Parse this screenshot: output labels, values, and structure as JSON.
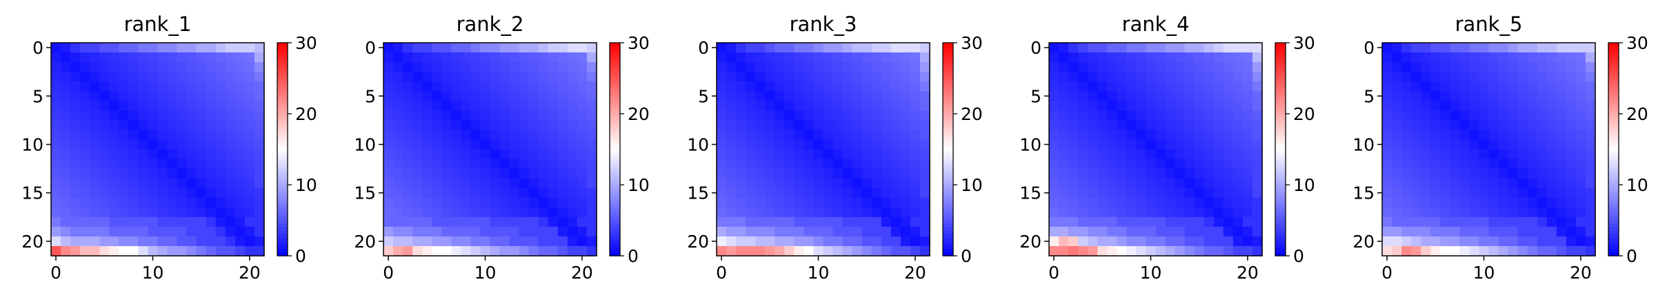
{
  "chart_data": [
    {
      "type": "heatmap",
      "title": "rank_1",
      "n": 22,
      "xticks": [
        0,
        10,
        20
      ],
      "yticks": [
        0,
        5,
        10,
        15,
        20
      ],
      "colorbar": {
        "min": 0,
        "max": 30,
        "ticks": [
          0,
          10,
          20,
          30
        ],
        "colors": [
          "#0000ff",
          "#ffffff",
          "#ff0000"
        ]
      },
      "diagonal_value": 1,
      "distance_slope": 0.3,
      "near_band_value": 1.5,
      "last_row": [
        25,
        22,
        21,
        19,
        19,
        17,
        16,
        15,
        15,
        13,
        11,
        10,
        9,
        9,
        8,
        7,
        6,
        5,
        5,
        4,
        3,
        3
      ],
      "row_20": [
        13,
        11,
        10,
        10,
        10,
        9,
        9,
        8,
        8,
        7,
        7,
        6,
        6,
        5,
        5,
        4,
        4,
        4,
        3,
        3,
        3,
        3
      ],
      "row_19": [
        9,
        8,
        7,
        7,
        7,
        7,
        6,
        6,
        6,
        6,
        5,
        5,
        5,
        5,
        4,
        4,
        4,
        3,
        3,
        3,
        3,
        3
      ],
      "row_18": [
        7,
        6,
        6,
        6,
        6,
        6,
        5,
        5,
        5,
        5,
        5,
        4,
        4,
        4,
        4,
        4,
        3,
        3,
        3,
        3,
        3,
        3
      ],
      "top_row": [
        3,
        3,
        3,
        4,
        4,
        5,
        5,
        6,
        6,
        7,
        7,
        8,
        8,
        9,
        9,
        10,
        10,
        11,
        12,
        12,
        12,
        11
      ],
      "last_col_top": [
        11,
        10,
        8,
        7,
        6,
        6,
        5,
        5,
        5,
        4,
        4,
        4,
        4,
        4,
        4,
        3,
        3,
        3,
        3,
        3,
        3,
        3
      ]
    },
    {
      "type": "heatmap",
      "title": "rank_2",
      "n": 22,
      "xticks": [
        0,
        10,
        20
      ],
      "yticks": [
        0,
        5,
        10,
        15,
        20
      ],
      "colorbar": {
        "min": 0,
        "max": 30,
        "ticks": [
          0,
          10,
          20,
          30
        ],
        "colors": [
          "#0000ff",
          "#ffffff",
          "#ff0000"
        ]
      },
      "diagonal_value": 1,
      "distance_slope": 0.3,
      "near_band_value": 1.5,
      "last_row": [
        18,
        20,
        21,
        17,
        16,
        15,
        15,
        14,
        13,
        12,
        11,
        10,
        9,
        9,
        8,
        7,
        6,
        6,
        5,
        4,
        4,
        3
      ],
      "row_20": [
        12,
        11,
        11,
        10,
        10,
        9,
        9,
        8,
        8,
        7,
        7,
        6,
        6,
        5,
        5,
        5,
        4,
        4,
        4,
        3,
        3,
        3
      ],
      "row_19": [
        9,
        8,
        8,
        7,
        7,
        7,
        6,
        6,
        6,
        6,
        5,
        5,
        5,
        5,
        4,
        4,
        4,
        4,
        3,
        3,
        3,
        3
      ],
      "row_18": [
        6,
        6,
        6,
        6,
        6,
        5,
        5,
        5,
        5,
        5,
        5,
        4,
        4,
        4,
        4,
        4,
        3,
        3,
        3,
        3,
        3,
        3
      ],
      "top_row": [
        3,
        3,
        3,
        4,
        4,
        5,
        5,
        6,
        6,
        7,
        8,
        8,
        9,
        9,
        10,
        10,
        11,
        12,
        12,
        13,
        13,
        12
      ],
      "last_col_top": [
        12,
        10,
        8,
        7,
        6,
        6,
        5,
        5,
        5,
        4,
        4,
        4,
        4,
        4,
        4,
        3,
        3,
        3,
        3,
        3,
        3,
        3
      ]
    },
    {
      "type": "heatmap",
      "title": "rank_3",
      "n": 22,
      "xticks": [
        0,
        10,
        20
      ],
      "yticks": [
        0,
        5,
        10,
        15,
        20
      ],
      "colorbar": {
        "min": 0,
        "max": 30,
        "ticks": [
          0,
          10,
          20,
          30
        ],
        "colors": [
          "#0000ff",
          "#ffffff",
          "#ff0000"
        ]
      },
      "diagonal_value": 1,
      "distance_slope": 0.3,
      "near_band_value": 1.5,
      "last_row": [
        22,
        21,
        22,
        22,
        22,
        21,
        20,
        18,
        16,
        15,
        13,
        12,
        11,
        10,
        9,
        8,
        7,
        6,
        5,
        5,
        4,
        3
      ],
      "row_20": [
        14,
        13,
        12,
        12,
        11,
        11,
        10,
        10,
        9,
        9,
        8,
        7,
        7,
        6,
        6,
        5,
        5,
        4,
        4,
        4,
        3,
        3
      ],
      "row_19": [
        10,
        9,
        9,
        8,
        8,
        8,
        7,
        7,
        7,
        6,
        6,
        6,
        5,
        5,
        5,
        4,
        4,
        4,
        4,
        3,
        3,
        3
      ],
      "row_18": [
        7,
        7,
        7,
        6,
        6,
        6,
        6,
        6,
        5,
        5,
        5,
        5,
        5,
        4,
        4,
        4,
        4,
        3,
        3,
        3,
        3,
        3
      ],
      "top_row": [
        3,
        3,
        3,
        4,
        4,
        5,
        6,
        6,
        7,
        7,
        8,
        9,
        9,
        10,
        11,
        11,
        12,
        12,
        13,
        13,
        13,
        12
      ],
      "last_col_top": [
        12,
        10,
        9,
        8,
        7,
        6,
        6,
        5,
        5,
        5,
        4,
        4,
        4,
        4,
        4,
        4,
        3,
        3,
        3,
        3,
        3,
        3
      ]
    },
    {
      "type": "heatmap",
      "title": "rank_4",
      "n": 22,
      "xticks": [
        0,
        10,
        20
      ],
      "yticks": [
        0,
        5,
        10,
        15,
        20
      ],
      "colorbar": {
        "min": 0,
        "max": 30,
        "ticks": [
          0,
          10,
          20,
          30
        ],
        "colors": [
          "#0000ff",
          "#ffffff",
          "#ff0000"
        ]
      },
      "diagonal_value": 1,
      "distance_slope": 0.3,
      "near_band_value": 1.5,
      "last_row": [
        22,
        22,
        23,
        22,
        21,
        17,
        16,
        15,
        14,
        13,
        12,
        11,
        10,
        9,
        8,
        7,
        6,
        6,
        5,
        4,
        4,
        3
      ],
      "row_20": [
        16,
        19,
        18,
        12,
        11,
        10,
        10,
        9,
        8,
        8,
        7,
        7,
        6,
        6,
        5,
        5,
        4,
        4,
        4,
        3,
        3,
        3
      ],
      "row_19": [
        10,
        10,
        9,
        9,
        8,
        8,
        7,
        7,
        6,
        6,
        6,
        5,
        5,
        5,
        4,
        4,
        4,
        4,
        3,
        3,
        3,
        3
      ],
      "row_18": [
        7,
        7,
        7,
        6,
        6,
        6,
        6,
        5,
        5,
        5,
        5,
        5,
        4,
        4,
        4,
        4,
        3,
        3,
        3,
        3,
        3,
        3
      ],
      "top_row": [
        3,
        3,
        3,
        4,
        5,
        5,
        6,
        6,
        7,
        7,
        8,
        8,
        9,
        9,
        10,
        10,
        11,
        12,
        13,
        13,
        13,
        13
      ],
      "last_col_top": [
        13,
        11,
        9,
        8,
        7,
        6,
        6,
        5,
        5,
        5,
        4,
        4,
        4,
        4,
        4,
        4,
        3,
        3,
        3,
        3,
        3,
        3
      ]
    },
    {
      "type": "heatmap",
      "title": "rank_5",
      "n": 22,
      "xticks": [
        0,
        10,
        20
      ],
      "yticks": [
        0,
        5,
        10,
        15,
        20
      ],
      "colorbar": {
        "min": 0,
        "max": 30,
        "ticks": [
          0,
          10,
          20,
          30
        ],
        "colors": [
          "#0000ff",
          "#ffffff",
          "#ff0000"
        ]
      },
      "diagonal_value": 1,
      "distance_slope": 0.3,
      "near_band_value": 1.5,
      "last_row": [
        17,
        18,
        22,
        21,
        18,
        16,
        15,
        15,
        14,
        13,
        12,
        11,
        10,
        9,
        8,
        7,
        6,
        6,
        5,
        4,
        4,
        3
      ],
      "row_20": [
        13,
        13,
        12,
        11,
        10,
        10,
        9,
        9,
        8,
        8,
        7,
        7,
        6,
        6,
        5,
        5,
        4,
        4,
        4,
        3,
        3,
        3
      ],
      "row_19": [
        9,
        9,
        8,
        8,
        8,
        7,
        7,
        7,
        6,
        6,
        6,
        5,
        5,
        5,
        4,
        4,
        4,
        4,
        3,
        3,
        3,
        3
      ],
      "row_18": [
        7,
        6,
        6,
        6,
        6,
        6,
        5,
        5,
        5,
        5,
        5,
        4,
        4,
        4,
        4,
        4,
        3,
        3,
        3,
        3,
        3,
        3
      ],
      "top_row": [
        3,
        3,
        3,
        4,
        4,
        5,
        5,
        6,
        6,
        7,
        7,
        8,
        8,
        9,
        10,
        10,
        11,
        11,
        12,
        12,
        12,
        12
      ],
      "last_col_top": [
        12,
        10,
        8,
        7,
        6,
        6,
        5,
        5,
        5,
        4,
        4,
        4,
        4,
        4,
        4,
        3,
        3,
        3,
        3,
        3,
        3,
        3
      ]
    }
  ]
}
